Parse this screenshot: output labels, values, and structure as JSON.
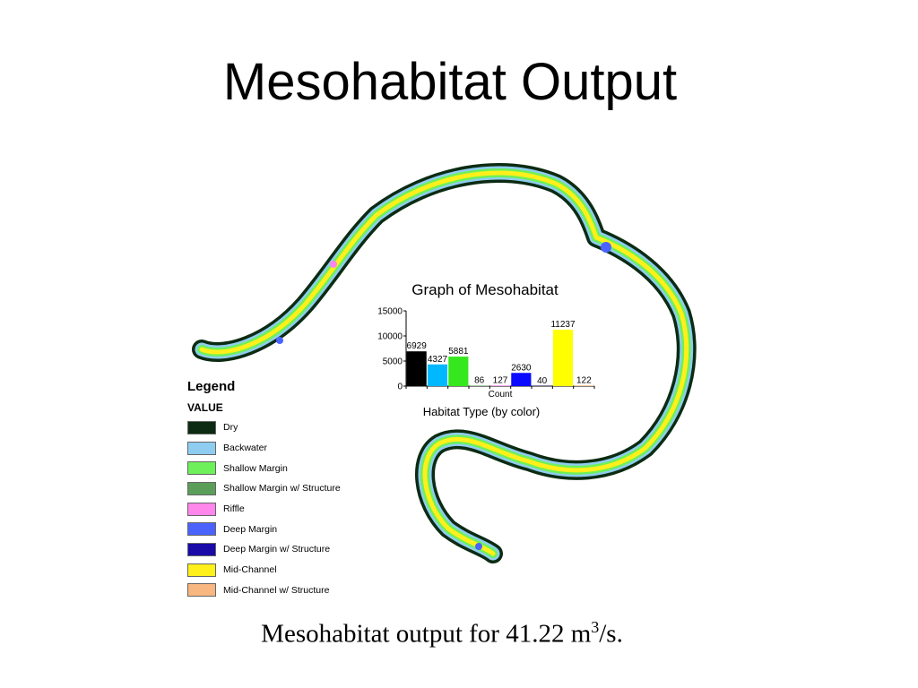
{
  "slide": {
    "title": "Mesohabitat Output",
    "caption_prefix": "Mesohabitat output for 41.22 m",
    "caption_superscript": "3",
    "caption_suffix": "/s."
  },
  "legend": {
    "title": "Legend",
    "subtitle": "VALUE",
    "items": [
      {
        "label": "Dry",
        "color": "#0c2b12"
      },
      {
        "label": "Backwater",
        "color": "#8ecdf0"
      },
      {
        "label": "Shallow Margin",
        "color": "#6ef05a"
      },
      {
        "label": "Shallow Margin w/ Structure",
        "color": "#5a9e5a"
      },
      {
        "label": "Riffle",
        "color": "#ff86ea"
      },
      {
        "label": "Deep Margin",
        "color": "#4a63ff"
      },
      {
        "label": "Deep Margin w/ Structure",
        "color": "#1a0aa8"
      },
      {
        "label": "Mid-Channel",
        "color": "#ffef1a"
      },
      {
        "label": "Mid-Channel w/ Structure",
        "color": "#f8b680"
      }
    ]
  },
  "chart_data": {
    "type": "bar",
    "title": "Graph of Mesohabitat",
    "xlabel": "Habitat Type (by color)",
    "ylabel": "Count",
    "ylim": [
      0,
      15000
    ],
    "yticks": [
      "0",
      "5000",
      "10000",
      "15000"
    ],
    "grid": false,
    "values": [
      6929,
      4327,
      5881,
      86,
      127,
      2630,
      40,
      11237,
      122
    ],
    "value_labels": [
      "6929",
      "4327",
      "5881",
      "86",
      "127",
      "2630",
      "40",
      "11237",
      "122"
    ],
    "colors": [
      "#000000",
      "#00b8ff",
      "#35e81e",
      "#5a9e5a",
      "#ff86ea",
      "#0a0aff",
      "#1a0aa8",
      "#ffff00",
      "#f8b680"
    ]
  }
}
